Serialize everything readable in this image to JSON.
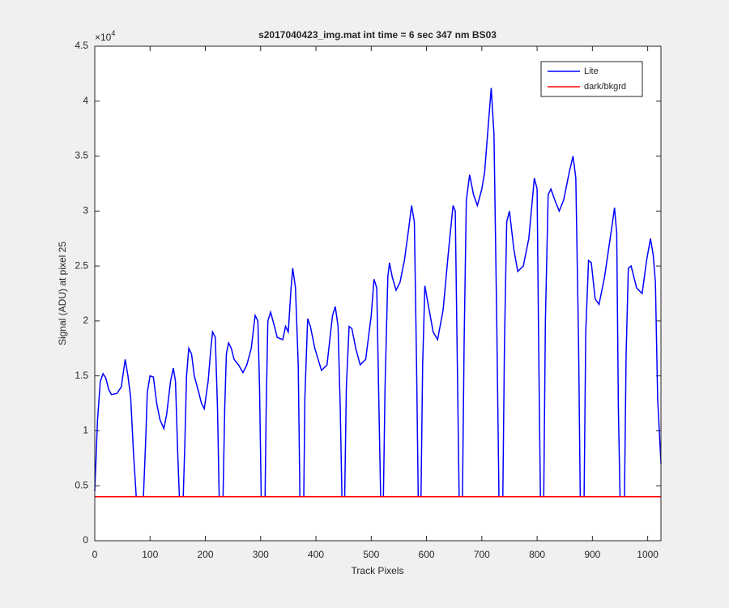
{
  "chart_data": {
    "type": "line",
    "title": "s2017040423_img.mat int time = 6 sec  347 nm BS03",
    "xlabel": "Track Pixels",
    "ylabel": "Signal (ADU) at pixel 25",
    "y_multiplier": "×10",
    "y_multiplier_power": "4",
    "xlim": [
      0,
      1024
    ],
    "ylim": [
      0,
      45000
    ],
    "xticks": [
      0,
      100,
      200,
      300,
      400,
      500,
      600,
      700,
      800,
      900,
      1000
    ],
    "yticks": [
      0,
      {
        "value": 5000,
        "label": "0.5"
      },
      {
        "value": 10000,
        "label": "1"
      },
      {
        "value": 15000,
        "label": "1.5"
      },
      {
        "value": 20000,
        "label": "2"
      },
      {
        "value": 25000,
        "label": "2.5"
      },
      {
        "value": 30000,
        "label": "3"
      },
      {
        "value": 35000,
        "label": "3.5"
      },
      {
        "value": 40000,
        "label": "4"
      },
      {
        "value": 45000,
        "label": "4.5"
      }
    ],
    "legend": "northeast",
    "series": [
      {
        "name": "Lite",
        "color": "#0000ff",
        "x": [
          0,
          5,
          10,
          15,
          20,
          25,
          30,
          40,
          48,
          55,
          60,
          65,
          70,
          75,
          88,
          92,
          95,
          100,
          106,
          112,
          118,
          125,
          130,
          137,
          142,
          146,
          150,
          153,
          160,
          163,
          166,
          170,
          175,
          180,
          188,
          193,
          198,
          205,
          210,
          213,
          218,
          222,
          225,
          232,
          235,
          238,
          242,
          247,
          252,
          260,
          268,
          275,
          283,
          290,
          295,
          298,
          301,
          308,
          310,
          313,
          318,
          325,
          330,
          340,
          345,
          350,
          355,
          358,
          363,
          368,
          371,
          378,
          380,
          385,
          390,
          398,
          410,
          420,
          430,
          435,
          440,
          444,
          447,
          452,
          455,
          460,
          465,
          472,
          480,
          490,
          500,
          505,
          510,
          514,
          517,
          522,
          525,
          530,
          533,
          538,
          545,
          552,
          560,
          568,
          573,
          578,
          582,
          585,
          590,
          593,
          597,
          603,
          612,
          620,
          630,
          640,
          648,
          652,
          656,
          659,
          665,
          668,
          672,
          678,
          685,
          692,
          700,
          705,
          712,
          717,
          722,
          727,
          731,
          738,
          741,
          745,
          750,
          758,
          765,
          775,
          785,
          795,
          800,
          803,
          806,
          812,
          815,
          820,
          825,
          832,
          840,
          848,
          858,
          865,
          870,
          875,
          878,
          885,
          888,
          893,
          898,
          905,
          912,
          922,
          935,
          940,
          944,
          947,
          950,
          958,
          961,
          965,
          970,
          980,
          990,
          998,
          1005,
          1010,
          1014,
          1018,
          1024
        ],
        "values": [
          4500,
          11000,
          14500,
          15200,
          14800,
          13800,
          13300,
          13400,
          14000,
          16500,
          15000,
          13000,
          8000,
          4000,
          4000,
          9000,
          13500,
          15000,
          14900,
          12500,
          11000,
          10200,
          11500,
          14500,
          15700,
          14500,
          8000,
          4000,
          4000,
          9000,
          15000,
          17500,
          17000,
          15000,
          13500,
          12500,
          12000,
          14500,
          17500,
          19000,
          18500,
          12000,
          4000,
          4000,
          12000,
          17000,
          18000,
          17500,
          16500,
          16000,
          15300,
          16000,
          17500,
          20500,
          20000,
          14000,
          4000,
          4000,
          12000,
          20000,
          20800,
          19500,
          18500,
          18300,
          19500,
          19000,
          23000,
          24800,
          23000,
          16000,
          4000,
          4000,
          13000,
          20200,
          19500,
          17500,
          15500,
          16000,
          20500,
          21300,
          19500,
          12000,
          4000,
          4000,
          14000,
          19500,
          19300,
          17500,
          16000,
          16500,
          20500,
          23800,
          23000,
          12000,
          4000,
          4000,
          14000,
          24000,
          25300,
          24000,
          22800,
          23500,
          25500,
          28500,
          30500,
          29000,
          16000,
          4000,
          4000,
          16000,
          23200,
          21500,
          19000,
          18300,
          21000,
          26500,
          30500,
          30000,
          15000,
          4000,
          4000,
          18000,
          31000,
          33300,
          31500,
          30500,
          32000,
          33500,
          38000,
          41200,
          37000,
          20000,
          4000,
          4000,
          18000,
          29000,
          30000,
          26500,
          24500,
          25000,
          27500,
          33000,
          32000,
          17000,
          4000,
          4000,
          20000,
          31500,
          32000,
          31000,
          30000,
          31000,
          33500,
          35000,
          33000,
          18000,
          4000,
          4000,
          19000,
          25500,
          25300,
          22000,
          21500,
          24000,
          28500,
          30300,
          28000,
          12000,
          4000,
          4000,
          17000,
          24800,
          25000,
          23000,
          22500,
          25500,
          27500,
          26000,
          23500,
          13000,
          7000
        ]
      },
      {
        "name": "dark/bkgrd",
        "color": "#ff0000",
        "x": [
          0,
          1024
        ],
        "values": [
          4000,
          4000
        ]
      }
    ]
  }
}
